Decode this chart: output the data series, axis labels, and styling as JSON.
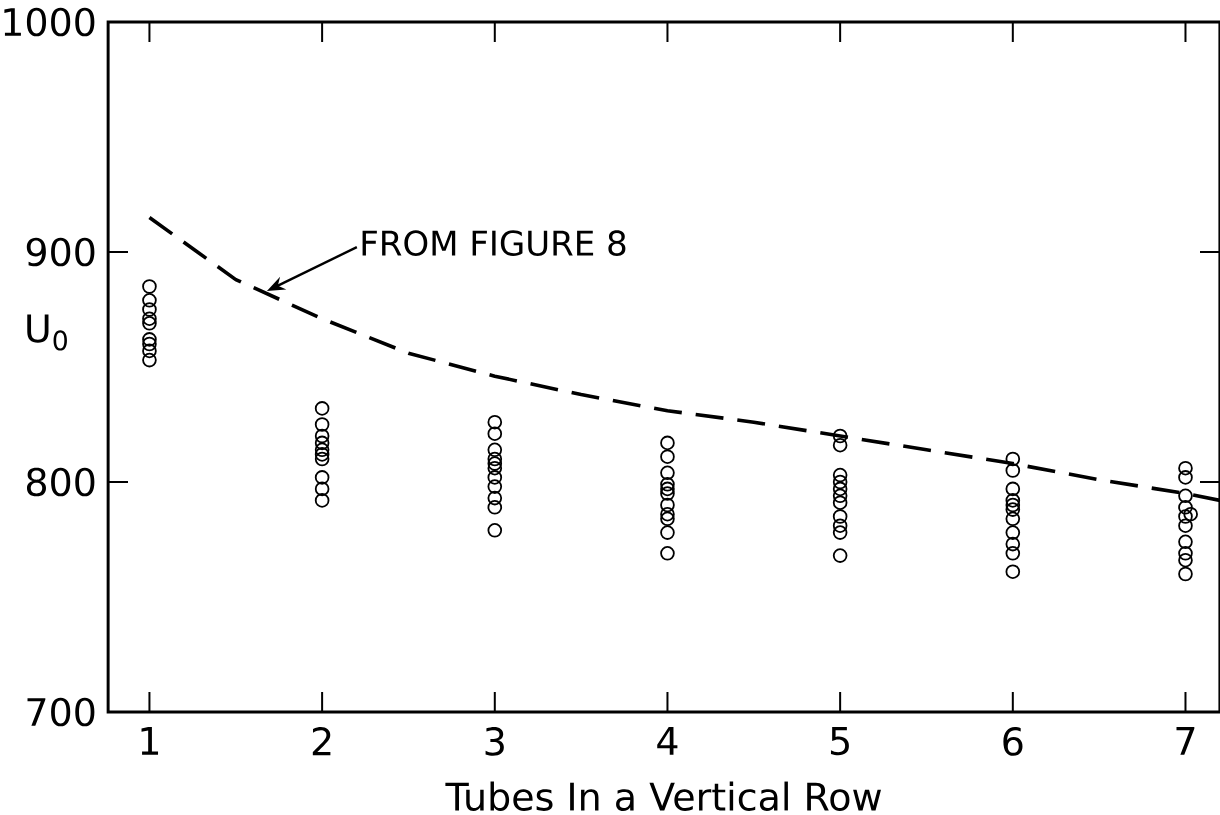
{
  "chart_data": {
    "type": "scatter",
    "xlabel": "Tubes In a Vertical Row",
    "ylabel": "U$_{0}$",
    "xlim": [
      0.76,
      7.2
    ],
    "ylim": [
      700,
      1000
    ],
    "xticks": [
      1,
      2,
      3,
      4,
      5,
      6,
      7
    ],
    "yticks": [
      700,
      800,
      900,
      1000
    ],
    "marker": "circle",
    "series": [
      {
        "color": "#000000",
        "x": [
          1,
          1,
          1,
          1,
          1,
          1,
          1,
          1,
          1,
          2,
          2,
          2,
          2,
          2,
          2,
          2,
          2,
          2,
          2,
          3,
          3,
          3,
          3,
          3,
          3,
          3,
          3,
          3,
          3,
          3,
          4,
          4,
          4,
          4,
          4,
          4,
          4,
          4,
          4,
          4,
          4,
          5,
          5,
          5,
          5,
          5,
          5,
          5,
          5,
          5,
          5,
          5,
          6,
          6,
          6,
          6,
          6,
          6,
          6,
          6,
          6,
          6,
          6,
          7,
          7,
          7,
          7,
          7.03,
          7,
          7,
          7,
          7,
          7,
          7
        ],
        "values": [
          885,
          879,
          875,
          871,
          869,
          862,
          860,
          857,
          853,
          832,
          825,
          820,
          817,
          814,
          812,
          810,
          802,
          797,
          792,
          826,
          821,
          814,
          810,
          808,
          806,
          802,
          798,
          793,
          789,
          779,
          817,
          811,
          804,
          799,
          797,
          795,
          790,
          786,
          784,
          778,
          769,
          820,
          816,
          803,
          800,
          797,
          794,
          791,
          785,
          781,
          778,
          768,
          810,
          805,
          797,
          792,
          790,
          788,
          784,
          778,
          773,
          769,
          761,
          806,
          802,
          794,
          789,
          786,
          785,
          781,
          774,
          769,
          766,
          760
        ]
      },
      {
        "type": "line",
        "color": "#000000",
        "line_style": "dashed",
        "marker": "none",
        "x": [
          1.0,
          1.5,
          2,
          2.5,
          3,
          3.5,
          4,
          4.5,
          5,
          5.5,
          6,
          6.5,
          7,
          7.2
        ],
        "values": [
          915,
          888,
          871,
          856,
          846,
          838,
          831,
          826,
          820,
          814,
          808,
          801,
          795,
          792
        ]
      }
    ],
    "annotations": [
      {
        "text": "FROM FIGURE 8",
        "x": 1.68,
        "y": 883
      }
    ]
  }
}
